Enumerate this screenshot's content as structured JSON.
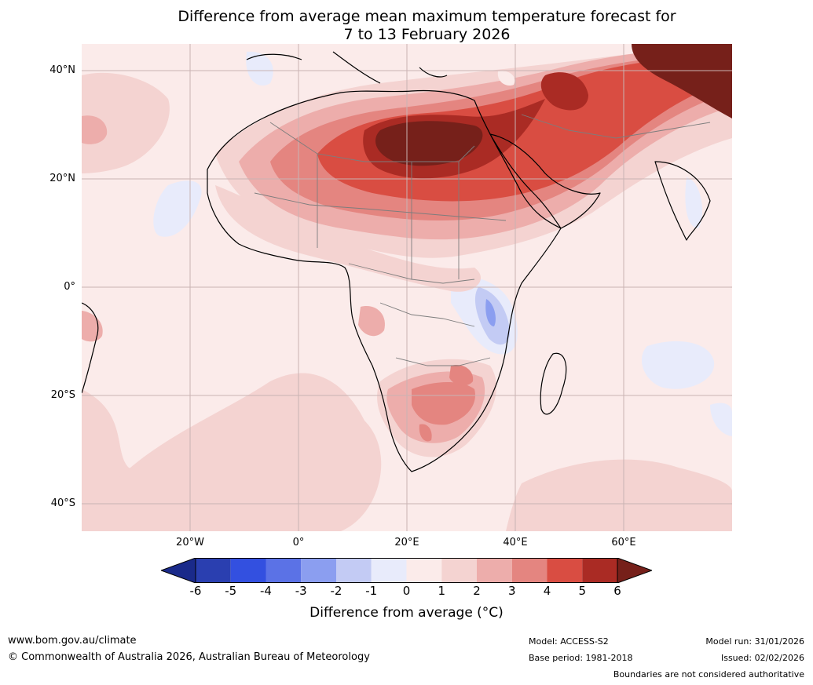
{
  "title": {
    "line1": "Difference from average mean maximum temperature forecast for",
    "line2": "7 to 13 February 2026"
  },
  "axes": {
    "lat_labels": [
      "40°N",
      "20°N",
      "0°",
      "20°S",
      "40°S"
    ],
    "lon_labels": [
      "20°W",
      "0°",
      "20°E",
      "40°E",
      "60°E"
    ]
  },
  "colorbar": {
    "ticks": [
      "-6",
      "-5",
      "-4",
      "-3",
      "-2",
      "-1",
      "0",
      "1",
      "2",
      "3",
      "4",
      "5",
      "6"
    ],
    "colors": [
      "#1a2a8a",
      "#2a3fb0",
      "#3350e0",
      "#5b72e6",
      "#8b9ef0",
      "#c3cbf4",
      "#e8ebfb",
      "#fbebea",
      "#f4d3d1",
      "#edadab",
      "#e48580",
      "#d94d42",
      "#aa2b24",
      "#76201a"
    ],
    "label": "Difference from average (°C)"
  },
  "footer": {
    "url": "www.bom.gov.au/climate",
    "copyright": "© Commonwealth of Australia 2026, Australian Bureau of Meteorology",
    "model": "Model: ACCESS-S2",
    "base_period": "Base period: 1981-2018",
    "model_run": "Model run: 31/01/2026",
    "issued": "Issued: 02/02/2026",
    "boundaries_note": "Boundaries are not considered authoritative"
  }
}
